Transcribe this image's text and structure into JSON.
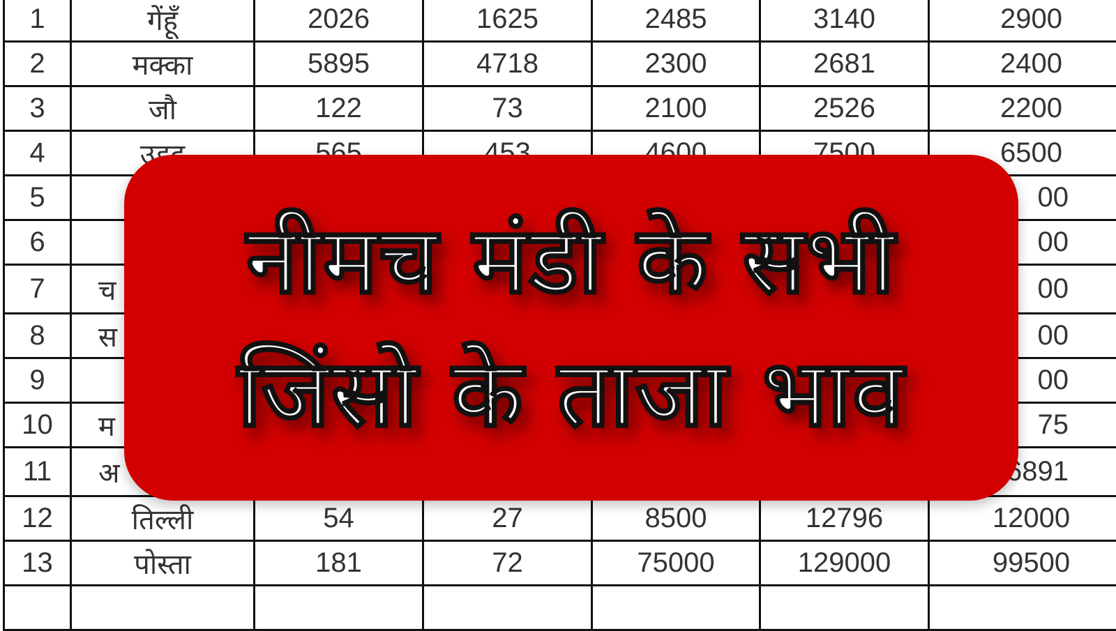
{
  "table": {
    "rows": [
      {
        "no": "1",
        "name": "गेंहूँ",
        "c1": "2026",
        "c2": "1625",
        "c3": "2485",
        "c4": "3140",
        "c5": "2900"
      },
      {
        "no": "2",
        "name": "मक्का",
        "c1": "5895",
        "c2": "4718",
        "c3": "2300",
        "c4": "2681",
        "c5": "2400"
      },
      {
        "no": "3",
        "name": "जौ",
        "c1": "122",
        "c2": "73",
        "c3": "2100",
        "c4": "2526",
        "c5": "2200"
      },
      {
        "no": "4",
        "name": "उड़द",
        "c1": "565",
        "c2": "453",
        "c3": "4600",
        "c4": "7500",
        "c5": "6500"
      },
      {
        "no": "5",
        "name": "",
        "c1": "",
        "c2": "",
        "c3": "",
        "c4": "",
        "c5": "00"
      },
      {
        "no": "6",
        "name": "",
        "c1": "",
        "c2": "",
        "c3": "",
        "c4": "",
        "c5": "00"
      },
      {
        "no": "7",
        "name": "च",
        "c1": "",
        "c2": "",
        "c3": "",
        "c4": "",
        "c5": "00"
      },
      {
        "no": "8",
        "name": "स",
        "c1": "",
        "c2": "",
        "c3": "",
        "c4": "",
        "c5": "00"
      },
      {
        "no": "9",
        "name": "",
        "c1": "",
        "c2": "",
        "c3": "",
        "c4": "",
        "c5": "00"
      },
      {
        "no": "10",
        "name": "म",
        "c1": "",
        "c2": "",
        "c3": "",
        "c4": "",
        "c5": "75"
      },
      {
        "no": "11",
        "name": "अ",
        "c1": "",
        "c2": "",
        "c3": "",
        "c4": "",
        "c5": "6891"
      },
      {
        "no": "12",
        "name": "तिल्ली",
        "c1": "54",
        "c2": "27",
        "c3": "8500",
        "c4": "12796",
        "c5": "12000"
      },
      {
        "no": "13",
        "name": "पोस्ता",
        "c1": "181",
        "c2": "72",
        "c3": "75000",
        "c4": "129000",
        "c5": "99500"
      },
      {
        "no": "",
        "name": "",
        "c1": "",
        "c2": "",
        "c3": "",
        "c4": "",
        "c5": ""
      }
    ]
  },
  "banner": {
    "line1": "नीमच मंडी के सभी",
    "line2": "जिंसो के ताजा भाव",
    "color": "#d20000"
  }
}
